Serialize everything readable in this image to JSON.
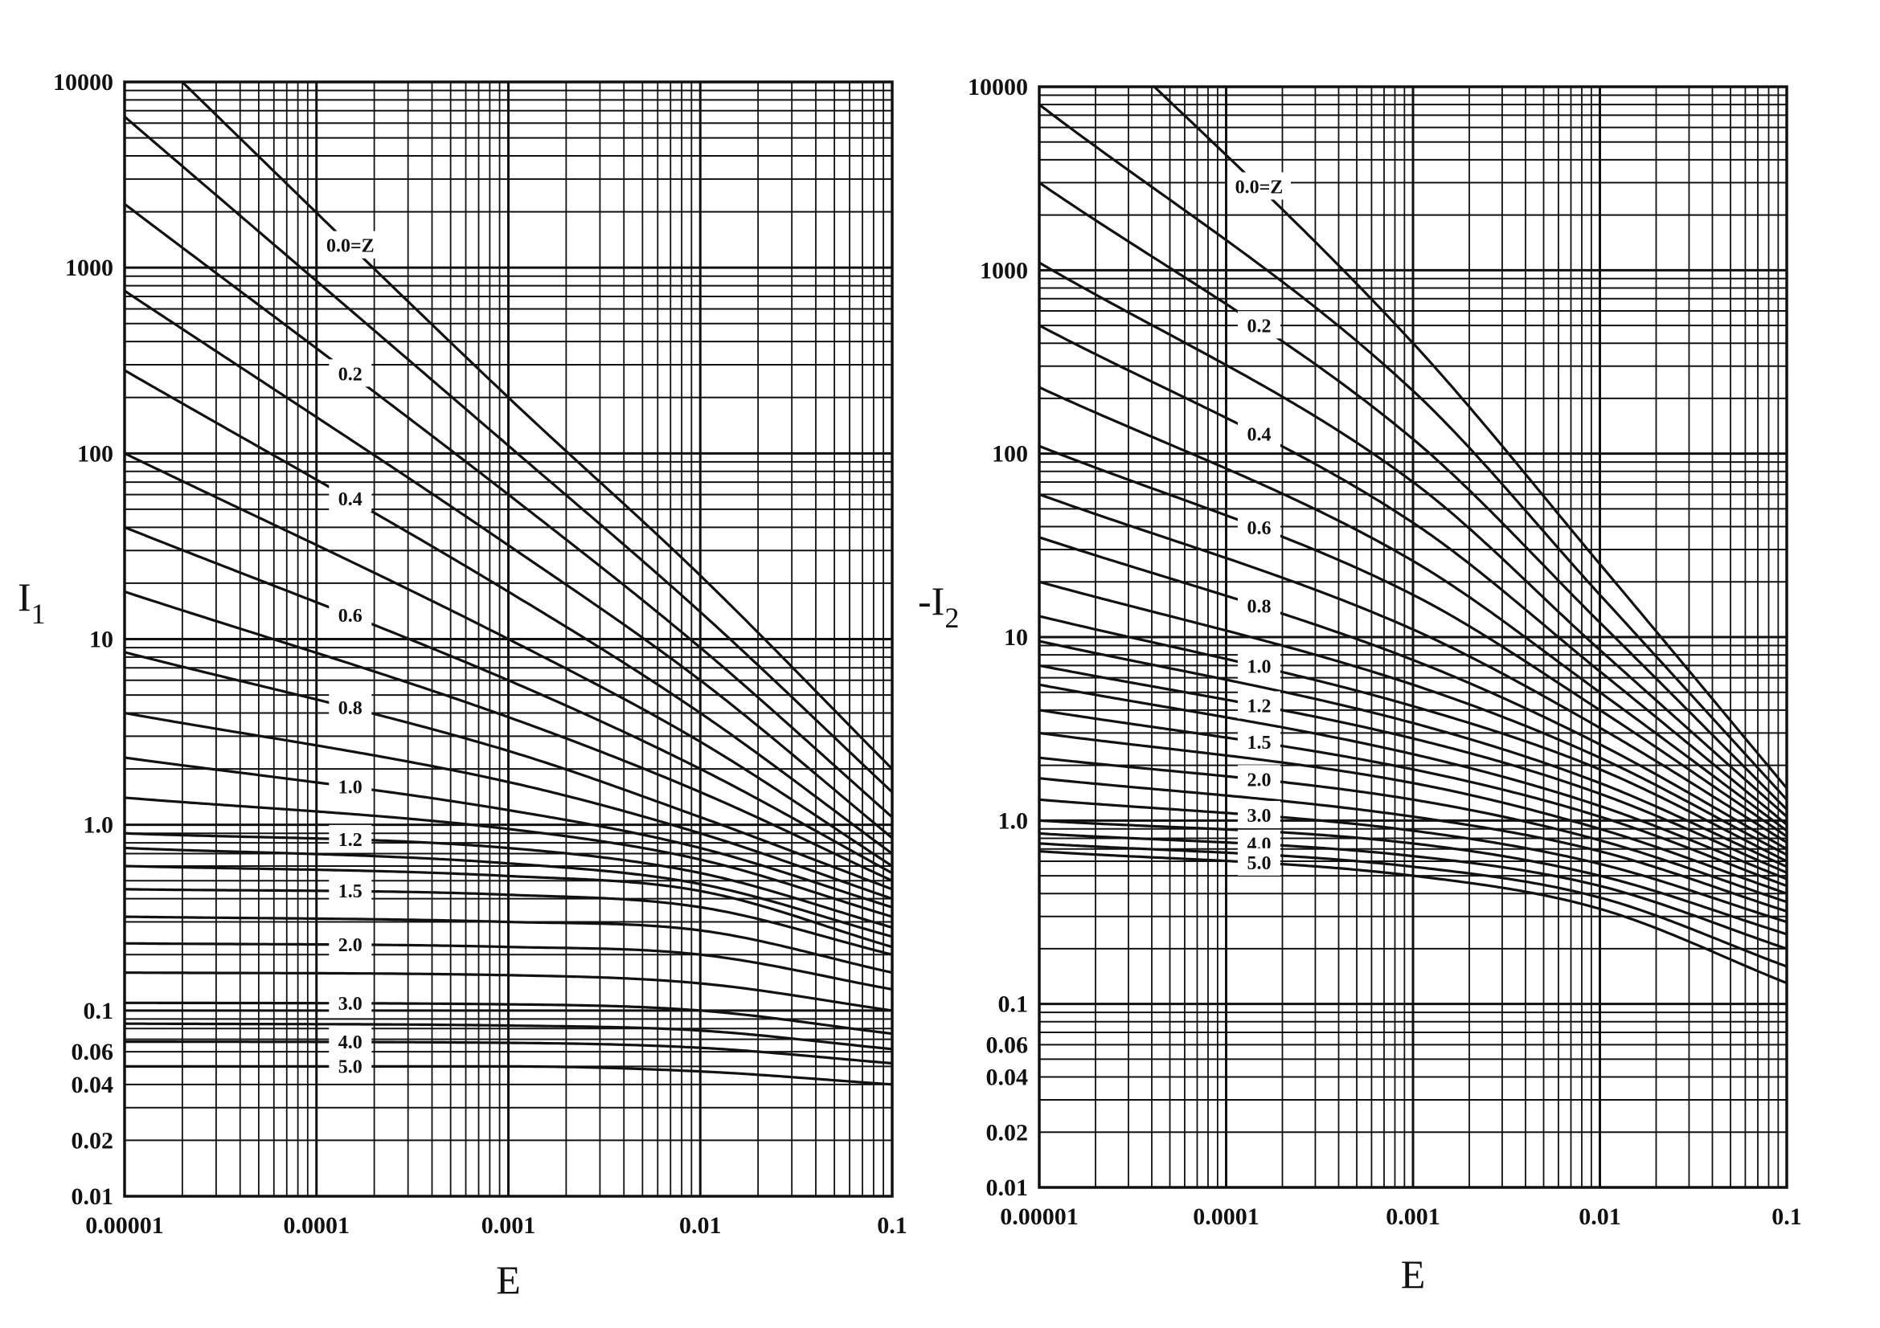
{
  "colors": {
    "ink": "#111111",
    "background": "#ffffff"
  },
  "chart_data": [
    {
      "type": "line",
      "title": "",
      "xlabel": "E",
      "ylabel": "I",
      "ylabel_sub": "1",
      "xscale": "log",
      "yscale": "log",
      "xlim": [
        1e-05,
        0.1
      ],
      "ylim": [
        0.01,
        10000
      ],
      "grid": true,
      "x_ticks": [
        "0.00001",
        "0.0001",
        "0.001",
        "0.01",
        "0.1"
      ],
      "x_tick_values": [
        1e-05,
        0.0001,
        0.001,
        0.01,
        0.1
      ],
      "y_ticks": [
        "10000",
        "1000",
        "100",
        "10",
        "1.0",
        "0.1",
        "0.06",
        "0.04",
        "0.02",
        "0.01"
      ],
      "y_tick_values": [
        10000,
        1000,
        100,
        10,
        1,
        0.1,
        0.06,
        0.04,
        0.02,
        0.01
      ],
      "label_at_E": 0.00015,
      "x": [
        1e-05,
        0.001,
        0.01,
        0.1
      ],
      "series": [
        {
          "name": "Z=0.0",
          "label": "0.0=Z",
          "values": [
            20000,
            200,
            22,
            2.0
          ]
        },
        {
          "name": "Z=0.1",
          "values": [
            6500,
            110,
            14,
            1.5
          ]
        },
        {
          "name": "Z=0.2",
          "label": "0.2",
          "values": [
            2200,
            60,
            9,
            1.1
          ]
        },
        {
          "name": "Z=0.3",
          "values": [
            750,
            32,
            6,
            0.85
          ]
        },
        {
          "name": "Z=0.4",
          "label": "0.4",
          "values": [
            280,
            18,
            4,
            0.7
          ]
        },
        {
          "name": "Z=0.5",
          "values": [
            100,
            10,
            2.8,
            0.6
          ]
        },
        {
          "name": "Z=0.6",
          "label": "0.6",
          "values": [
            40,
            6,
            2,
            0.55
          ]
        },
        {
          "name": "Z=0.7",
          "values": [
            18,
            3.8,
            1.5,
            0.5
          ]
        },
        {
          "name": "Z=0.8",
          "label": "0.8",
          "values": [
            8.5,
            2.5,
            1.1,
            0.45
          ]
        },
        {
          "name": "Z=0.9",
          "values": [
            4,
            1.7,
            0.9,
            0.4
          ]
        },
        {
          "name": "Z=1.0",
          "label": "1.0",
          "values": [
            2.3,
            1.2,
            0.75,
            0.36
          ]
        },
        {
          "name": "Z=1.1",
          "values": [
            1.4,
            0.95,
            0.65,
            0.32
          ]
        },
        {
          "name": "Z=1.2",
          "label": "1.2",
          "values": [
            0.9,
            0.75,
            0.55,
            0.28
          ]
        },
        {
          "name": "Z=1.3",
          "values": [
            0.75,
            0.62,
            0.48,
            0.25
          ]
        },
        {
          "name": "Z=1.4",
          "values": [
            0.6,
            0.53,
            0.44,
            0.22
          ]
        },
        {
          "name": "Z=1.5",
          "label": "1.5",
          "values": [
            0.45,
            0.42,
            0.36,
            0.2
          ]
        },
        {
          "name": "Z=1.75",
          "values": [
            0.32,
            0.3,
            0.27,
            0.16
          ]
        },
        {
          "name": "Z=2.0",
          "label": "2.0",
          "values": [
            0.23,
            0.22,
            0.2,
            0.13
          ]
        },
        {
          "name": "Z=2.5",
          "values": [
            0.16,
            0.155,
            0.14,
            0.1
          ]
        },
        {
          "name": "Z=3.0",
          "label": "3.0",
          "values": [
            0.11,
            0.108,
            0.1,
            0.075
          ]
        },
        {
          "name": "Z=3.5",
          "values": [
            0.085,
            0.083,
            0.078,
            0.062
          ]
        },
        {
          "name": "Z=4.0",
          "label": "4.0",
          "values": [
            0.068,
            0.067,
            0.063,
            0.052
          ]
        },
        {
          "name": "Z=5.0",
          "label": "5.0",
          "values": [
            0.05,
            0.05,
            0.047,
            0.04
          ]
        }
      ]
    },
    {
      "type": "line",
      "title": "",
      "xlabel": "E",
      "ylabel": "-I",
      "ylabel_sub": "2",
      "xscale": "log",
      "yscale": "log",
      "xlim": [
        1e-05,
        0.1
      ],
      "ylim": [
        0.01,
        10000
      ],
      "grid": true,
      "x_ticks": [
        "0.00001",
        "0.0001",
        "0.001",
        "0.01",
        "0.1"
      ],
      "x_tick_values": [
        1e-05,
        0.0001,
        0.001,
        0.01,
        0.1
      ],
      "y_ticks": [
        "10000",
        "1000",
        "100",
        "10",
        "1.0",
        "0.1",
        "0.06",
        "0.04",
        "0.02",
        "0.01"
      ],
      "y_tick_values": [
        10000,
        1000,
        100,
        10,
        1,
        0.1,
        0.06,
        0.04,
        0.02,
        0.01
      ],
      "label_at_E": 0.00015,
      "x": [
        1e-05,
        0.001,
        0.01,
        0.1
      ],
      "series": [
        {
          "name": "Z=0.0",
          "label": "0.0=Z",
          "values": [
            40000,
            400,
            25,
            1.5
          ]
        },
        {
          "name": "Z=0.1",
          "values": [
            8000,
            220,
            17,
            1.3
          ]
        },
        {
          "name": "Z=0.2",
          "label": "0.2",
          "values": [
            3000,
            120,
            12,
            1.15
          ]
        },
        {
          "name": "Z=0.3",
          "values": [
            1100,
            70,
            8.5,
            1.05
          ]
        },
        {
          "name": "Z=0.4",
          "label": "0.4",
          "values": [
            500,
            42,
            6.5,
            0.95
          ]
        },
        {
          "name": "Z=0.5",
          "values": [
            230,
            26,
            5,
            0.88
          ]
        },
        {
          "name": "Z=0.6",
          "label": "0.6",
          "values": [
            110,
            17,
            4,
            0.82
          ]
        },
        {
          "name": "Z=0.7",
          "values": [
            60,
            11,
            3.2,
            0.76
          ]
        },
        {
          "name": "Z=0.8",
          "label": "0.8",
          "values": [
            35,
            7.5,
            2.6,
            0.7
          ]
        },
        {
          "name": "Z=0.9",
          "values": [
            20,
            5.5,
            2.2,
            0.65
          ]
        },
        {
          "name": "Z=1.0",
          "label": "1.0",
          "values": [
            13,
            4.2,
            1.9,
            0.6
          ]
        },
        {
          "name": "Z=1.1",
          "values": [
            9.5,
            3.4,
            1.6,
            0.56
          ]
        },
        {
          "name": "Z=1.2",
          "label": "1.2",
          "values": [
            7,
            2.8,
            1.4,
            0.52
          ]
        },
        {
          "name": "Z=1.35",
          "values": [
            5.5,
            2.3,
            1.2,
            0.48
          ]
        },
        {
          "name": "Z=1.5",
          "label": "1.5",
          "values": [
            4,
            1.9,
            1.05,
            0.44
          ]
        },
        {
          "name": "Z=1.75",
          "values": [
            3,
            1.6,
            0.9,
            0.4
          ]
        },
        {
          "name": "Z=2.0",
          "label": "2.0",
          "values": [
            2.2,
            1.3,
            0.78,
            0.36
          ]
        },
        {
          "name": "Z=2.5",
          "values": [
            1.7,
            1.05,
            0.68,
            0.32
          ]
        },
        {
          "name": "Z=3.0",
          "label": "3.0",
          "values": [
            1.3,
            0.88,
            0.58,
            0.28
          ]
        },
        {
          "name": "Z=3.5",
          "values": [
            1.0,
            0.75,
            0.5,
            0.24
          ]
        },
        {
          "name": "Z=4.0",
          "label": "4.0",
          "values": [
            0.85,
            0.64,
            0.44,
            0.2
          ]
        },
        {
          "name": "Z=4.5",
          "values": [
            0.75,
            0.56,
            0.38,
            0.16
          ]
        },
        {
          "name": "Z=5.0",
          "label": "5.0",
          "values": [
            0.68,
            0.5,
            0.33,
            0.13
          ]
        }
      ]
    }
  ]
}
